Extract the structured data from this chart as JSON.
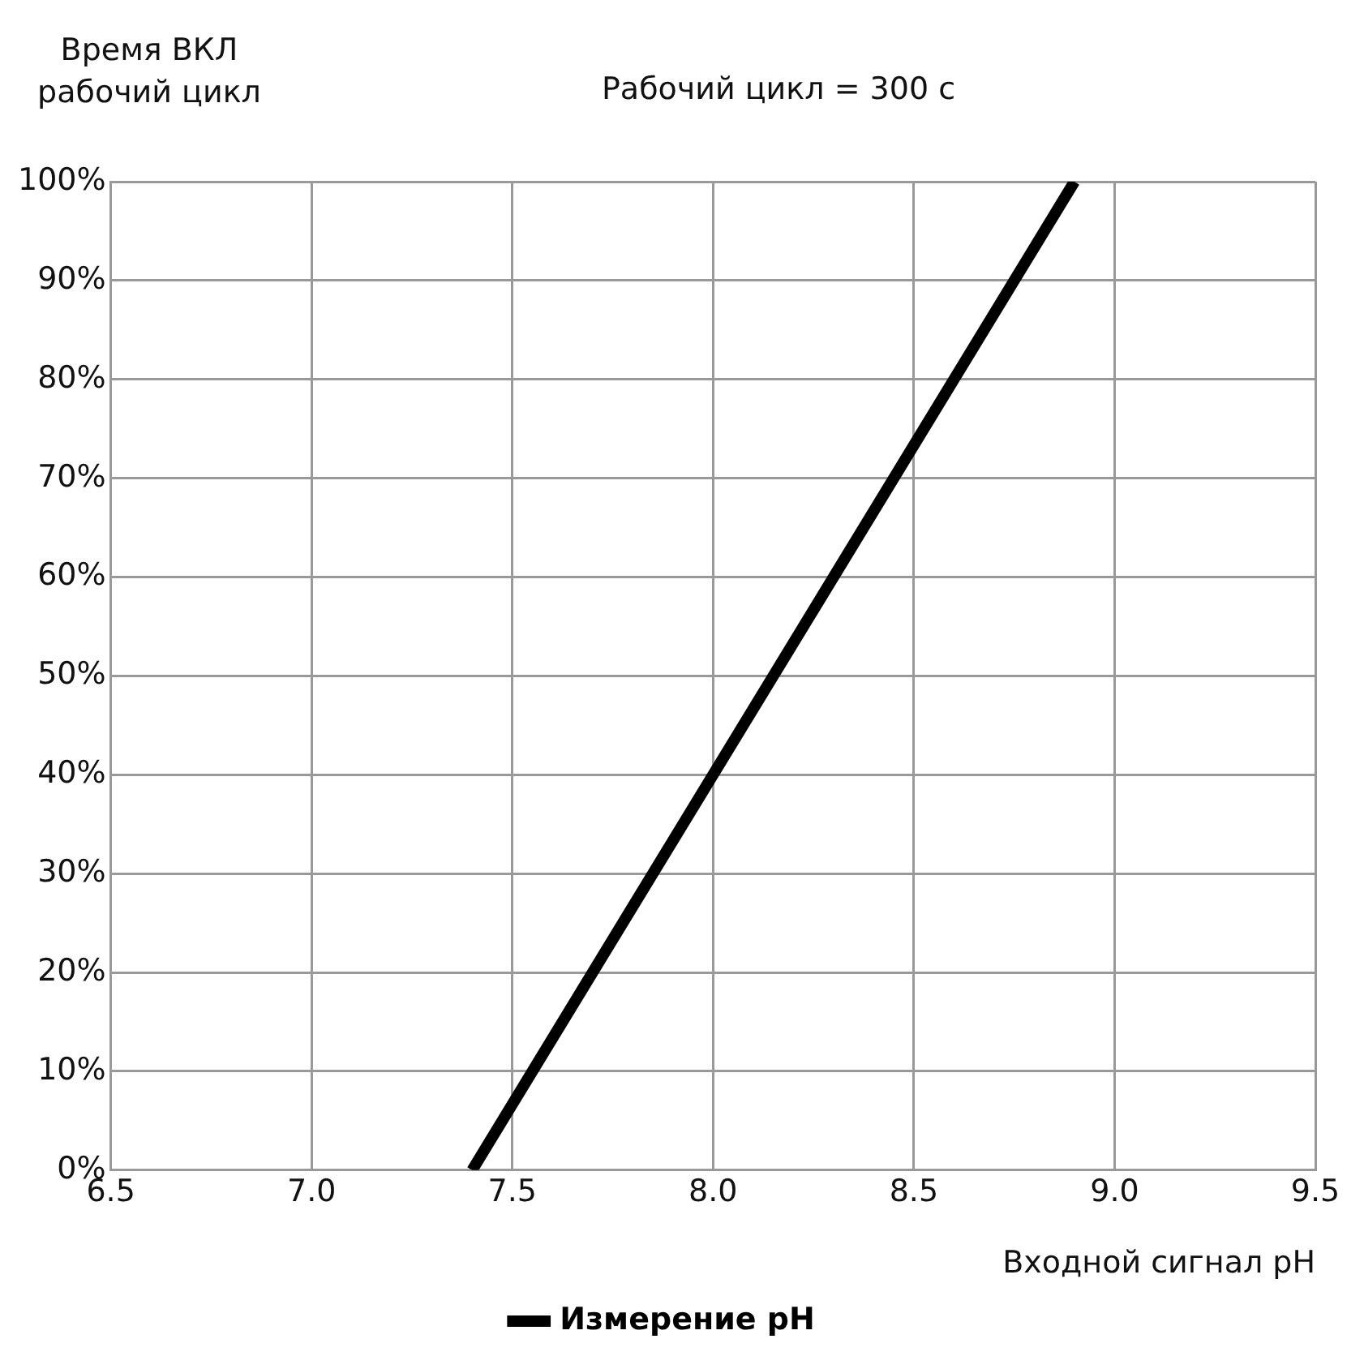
{
  "chart_data": {
    "type": "line",
    "title": "Рабочий цикл = 300 с",
    "xlabel": "Входной сигнал pH",
    "ylabel": "Время ВКЛ рабочий цикл",
    "x": [
      7.4,
      8.9
    ],
    "series": [
      {
        "name": "Измерение pH",
        "color": "#000000",
        "values": [
          0,
          100
        ]
      }
    ],
    "xlim": [
      6.5,
      9.5
    ],
    "xticks": [
      6.5,
      {
        "value": 7,
        "label": "7.0"
      },
      7.5,
      {
        "value": 8,
        "label": "8.0"
      },
      8.5,
      {
        "value": 9,
        "label": "9.0"
      },
      9.5
    ],
    "ylim": [
      0,
      100
    ],
    "yticks": [
      {
        "value": 0,
        "label": "0%"
      },
      {
        "value": 10,
        "label": "10%"
      },
      {
        "value": 20,
        "label": "20%"
      },
      {
        "value": 30,
        "label": "30%"
      },
      {
        "value": 40,
        "label": "40%"
      },
      {
        "value": 50,
        "label": "50%"
      },
      {
        "value": 60,
        "label": "60%"
      },
      {
        "value": 70,
        "label": "70%"
      },
      {
        "value": 80,
        "label": "80%"
      },
      {
        "value": 90,
        "label": "90%"
      },
      {
        "value": 100,
        "label": "100%"
      }
    ],
    "grid": true,
    "legend": "bottom",
    "marker": "none",
    "line_style": "solid"
  }
}
